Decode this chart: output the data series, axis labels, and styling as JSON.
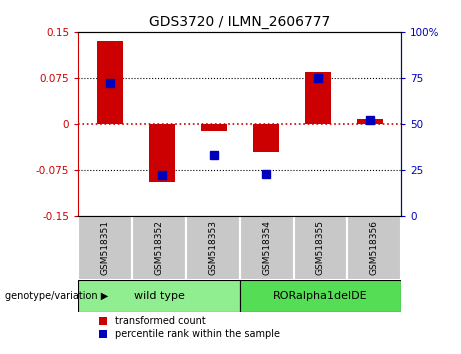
{
  "title": "GDS3720 / ILMN_2606777",
  "samples": [
    "GSM518351",
    "GSM518352",
    "GSM518353",
    "GSM518354",
    "GSM518355",
    "GSM518356"
  ],
  "red_values": [
    0.135,
    -0.095,
    -0.012,
    -0.045,
    0.085,
    0.008
  ],
  "blue_values": [
    72,
    22,
    33,
    23,
    75,
    52
  ],
  "ylim_left": [
    -0.15,
    0.15
  ],
  "ylim_right": [
    0,
    100
  ],
  "yticks_left": [
    -0.15,
    -0.075,
    0,
    0.075,
    0.15
  ],
  "yticks_right": [
    0,
    25,
    50,
    75,
    100
  ],
  "ytick_labels_left": [
    "-0.15",
    "-0.075",
    "0",
    "0.075",
    "0.15"
  ],
  "ytick_labels_right": [
    "0",
    "25",
    "50",
    "75",
    "100%"
  ],
  "group1_label": "wild type",
  "group2_label": "RORalpha1delDE",
  "group_label_prefix": "genotype/variation",
  "group1_color": "#90EE90",
  "group2_color": "#55DD55",
  "sample_box_color": "#C8C8C8",
  "bar_color_red": "#CC0000",
  "bar_color_blue": "#0000BB",
  "legend_red": "transformed count",
  "legend_blue": "percentile rank within the sample",
  "bar_width": 0.5,
  "blue_marker_size": 6,
  "plot_bg": "#ffffff",
  "hline_red_color": "#CC0000",
  "hline_black_color": "#000000",
  "dotted_lw": 0.8,
  "n_samples": 6
}
